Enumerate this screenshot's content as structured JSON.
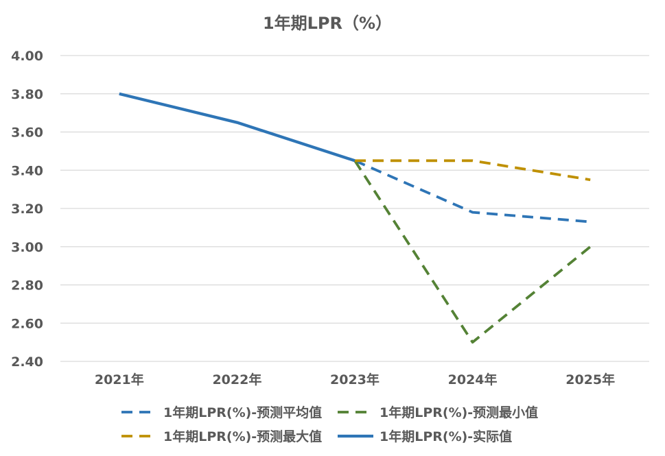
{
  "chart_data": {
    "type": "line",
    "title": "1年期LPR（%）",
    "categories": [
      "2021年",
      "2022年",
      "2023年",
      "2024年",
      "2025年"
    ],
    "ylim": [
      2.4,
      4.0
    ],
    "yticks": [
      4.0,
      3.8,
      3.6,
      3.4,
      3.2,
      3.0,
      2.8,
      2.6,
      2.4
    ],
    "ytick_labels": [
      "4.00",
      "3.80",
      "3.60",
      "3.40",
      "3.20",
      "3.00",
      "2.80",
      "2.60",
      "2.40"
    ],
    "grid": true,
    "legend_position": "bottom",
    "series": [
      {
        "name": "1年期LPR(%)-预测平均值",
        "color": "#2e75b6",
        "dashed": true,
        "values": [
          null,
          null,
          3.45,
          3.18,
          3.13
        ]
      },
      {
        "name": "1年期LPR(%)-预测最小值",
        "color": "#548235",
        "dashed": true,
        "values": [
          null,
          null,
          3.45,
          2.5,
          3.0
        ]
      },
      {
        "name": "1年期LPR(%)-预测最大值",
        "color": "#bf9000",
        "dashed": true,
        "values": [
          null,
          null,
          3.45,
          3.45,
          3.35
        ]
      },
      {
        "name": "1年期LPR(%)-实际值",
        "color": "#2e75b6",
        "dashed": false,
        "values": [
          3.8,
          3.65,
          3.45,
          null,
          null
        ]
      }
    ]
  }
}
